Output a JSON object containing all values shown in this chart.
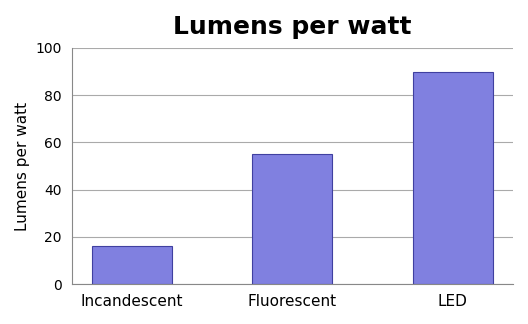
{
  "categories": [
    "Incandescent",
    "Fluorescent",
    "LED"
  ],
  "values": [
    16,
    55,
    90
  ],
  "bar_color": "#8080e0",
  "bar_edgecolor": "#4040a0",
  "title": "Lumens per watt",
  "title_fontsize": 18,
  "ylabel": "Lumens per watt",
  "ylabel_fontsize": 11,
  "xlabel_fontsize": 11,
  "ylim": [
    0,
    100
  ],
  "yticks": [
    0,
    20,
    40,
    60,
    80,
    100
  ],
  "grid_color": "#aaaaaa",
  "background_color": "#ffffff",
  "bar_width": 0.5
}
